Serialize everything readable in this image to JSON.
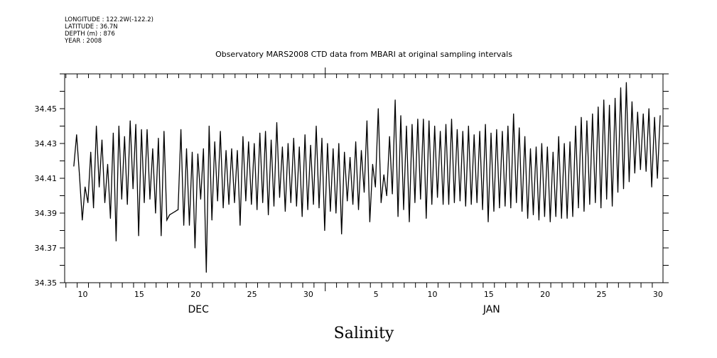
{
  "header": {
    "lines": [
      "LONGITUDE : 122.2W(-122.2)",
      "LATITUDE : 36.7N",
      "DEPTH (m) : 876",
      "YEAR : 2008"
    ]
  },
  "chart_data": {
    "type": "line",
    "title": "Observatory MARS2008 CTD data from MBARI at original sampling intervals",
    "xlabel": "Salinity",
    "ylabel": "",
    "x_units": "day (Dec 1 = 1, Jan 1 = 32)",
    "xlim": [
      8.39,
      61.45
    ],
    "ylim": [
      34.35,
      34.47
    ],
    "y_ticks": [
      "34.35",
      "34.37",
      "34.39",
      "34.41",
      "34.43",
      "34.45"
    ],
    "x_tick_labels": [
      {
        "day": 10,
        "label": "10"
      },
      {
        "day": 15,
        "label": "15"
      },
      {
        "day": 20,
        "label": "20"
      },
      {
        "day": 25,
        "label": "25"
      },
      {
        "day": 30,
        "label": "30"
      },
      {
        "day": 36,
        "label": "5"
      },
      {
        "day": 41,
        "label": "10"
      },
      {
        "day": 46,
        "label": "15"
      },
      {
        "day": 51,
        "label": "20"
      },
      {
        "day": 56,
        "label": "25"
      },
      {
        "day": 61,
        "label": "30"
      }
    ],
    "month_labels": [
      {
        "day": 20,
        "label": "DEC"
      },
      {
        "day": 46,
        "label": "JAN"
      }
    ],
    "month_boundary_day": 31.5,
    "grid": false,
    "legend": "none",
    "series": [
      {
        "name": "Salinity",
        "x_start": 9.2,
        "x_step": 0.25,
        "values": [
          34.417,
          34.435,
          34.412,
          34.386,
          34.405,
          34.396,
          34.425,
          34.393,
          34.44,
          34.405,
          34.432,
          34.396,
          34.418,
          34.387,
          34.436,
          34.374,
          34.44,
          34.398,
          34.434,
          34.395,
          34.443,
          34.404,
          34.441,
          34.377,
          34.438,
          34.396,
          34.438,
          34.398,
          34.427,
          34.39,
          34.433,
          34.377,
          34.437,
          34.386,
          34.389,
          34.39,
          34.391,
          34.392,
          34.438,
          34.383,
          34.427,
          34.383,
          34.425,
          34.37,
          34.424,
          34.398,
          34.427,
          34.356,
          34.44,
          34.386,
          34.431,
          34.397,
          34.437,
          34.393,
          34.426,
          34.395,
          34.427,
          34.396,
          34.426,
          34.383,
          34.434,
          34.397,
          34.431,
          34.395,
          34.43,
          34.392,
          34.436,
          34.396,
          34.437,
          34.389,
          34.432,
          34.394,
          34.442,
          34.399,
          34.428,
          34.391,
          34.43,
          34.396,
          34.433,
          34.394,
          34.428,
          34.388,
          34.435,
          34.392,
          34.429,
          34.395,
          34.44,
          34.393,
          34.433,
          34.38,
          34.43,
          34.391,
          34.427,
          34.39,
          34.43,
          34.378,
          34.425,
          34.397,
          34.422,
          34.395,
          34.431,
          34.392,
          34.426,
          34.402,
          34.443,
          34.385,
          34.418,
          34.405,
          34.45,
          34.396,
          34.412,
          34.4,
          34.434,
          34.401,
          34.455,
          34.388,
          34.446,
          34.392,
          34.44,
          34.385,
          34.441,
          34.396,
          34.444,
          34.398,
          34.444,
          34.387,
          34.443,
          34.395,
          34.44,
          34.399,
          34.437,
          34.395,
          34.441,
          34.395,
          34.444,
          34.396,
          34.438,
          34.397,
          34.437,
          34.394,
          34.44,
          34.395,
          34.435,
          34.396,
          34.437,
          34.392,
          34.441,
          34.385,
          34.436,
          34.391,
          34.438,
          34.393,
          34.437,
          34.394,
          34.44,
          34.393,
          34.447,
          34.396,
          34.439,
          34.391,
          34.434,
          34.387,
          34.427,
          34.389,
          34.428,
          34.386,
          34.43,
          34.388,
          34.428,
          34.385,
          34.425,
          34.388,
          34.434,
          34.387,
          34.43,
          34.387,
          34.431,
          34.388,
          34.44,
          34.393,
          34.445,
          34.391,
          34.443,
          34.395,
          34.447,
          34.396,
          34.451,
          34.393,
          34.455,
          34.398,
          34.452,
          34.394,
          34.456,
          34.402,
          34.462,
          34.404,
          34.465,
          34.408,
          34.454,
          34.413,
          34.448,
          34.415,
          34.447,
          34.414,
          34.45,
          34.405,
          34.445,
          34.41,
          34.446
        ]
      }
    ]
  }
}
